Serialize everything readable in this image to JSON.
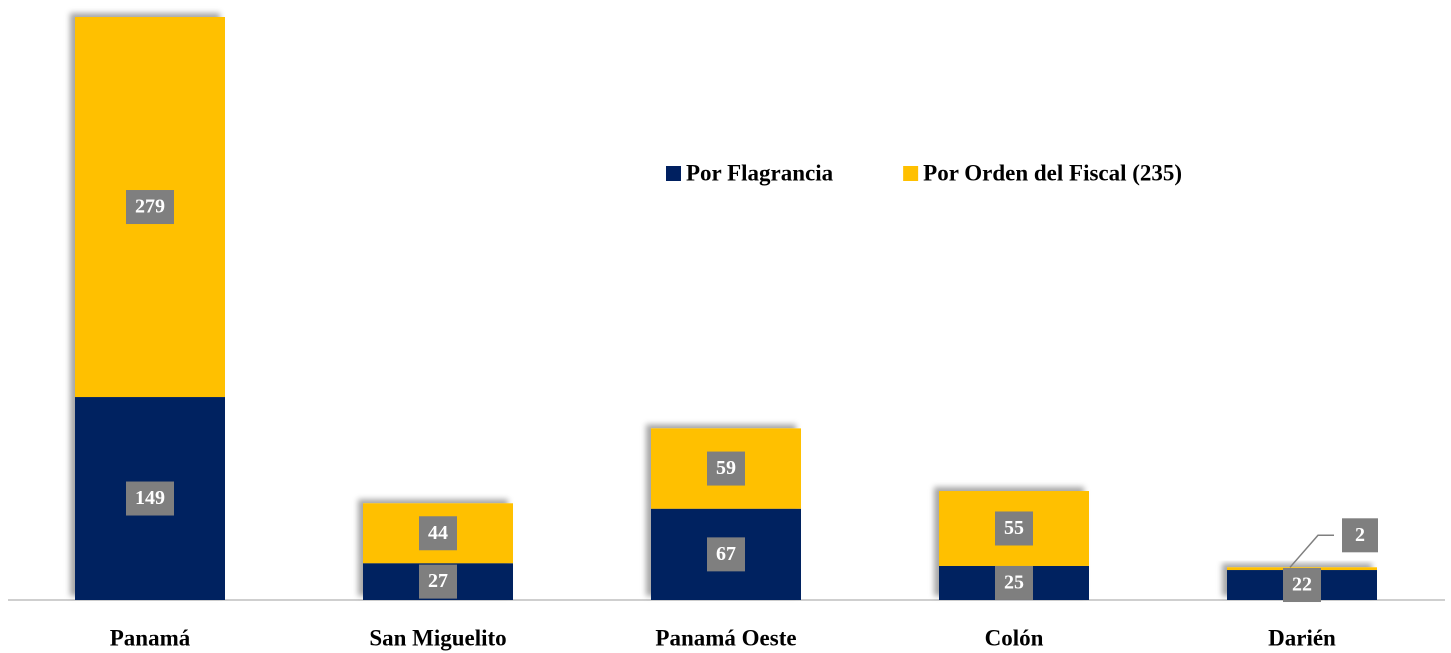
{
  "chart_data": {
    "type": "stacked_bar",
    "categories": [
      "Panamá",
      "San Miguelito",
      "Panamá Oeste",
      "Colón",
      "Darién"
    ],
    "series": [
      {
        "name": "Por Flagrancia",
        "color": "#002060",
        "values": [
          149,
          27,
          67,
          25,
          22
        ]
      },
      {
        "name": "Por Orden del Fiscal (235)",
        "color": "#ffc000",
        "values": [
          279,
          44,
          59,
          55,
          2
        ]
      }
    ],
    "legend": "top-right"
  }
}
